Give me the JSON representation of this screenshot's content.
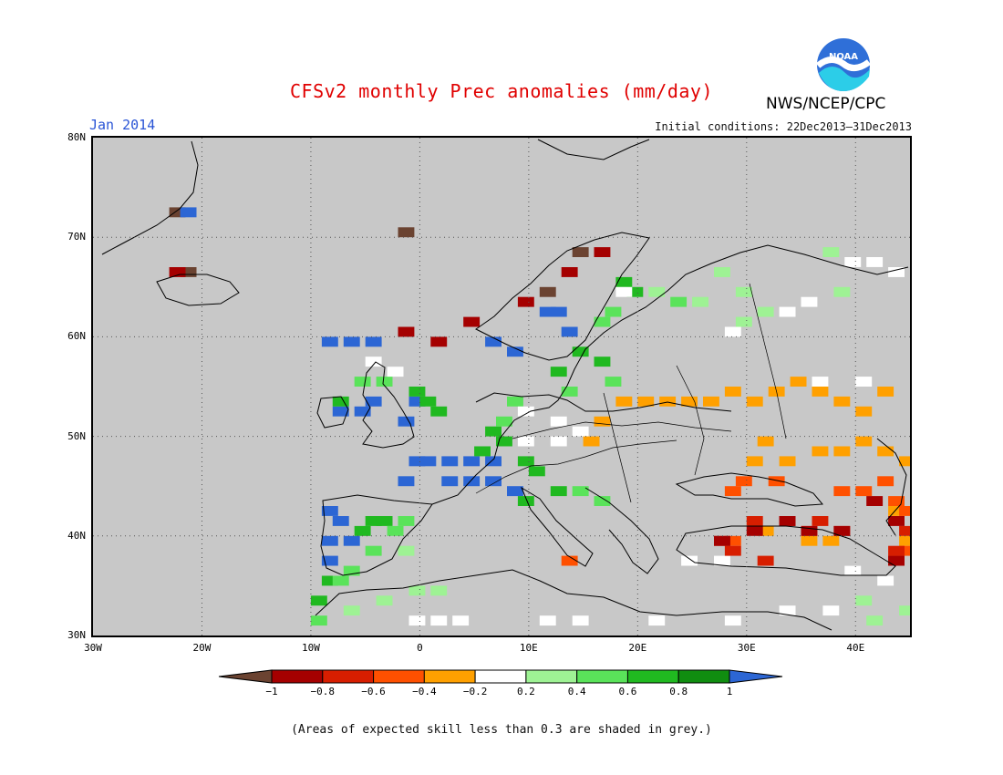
{
  "header": {
    "title": "CFSv2 monthly Prec anomalies (mm/day)",
    "month": "Jan 2014",
    "initial_conditions": "Initial conditions: 22Dec2013–31Dec2013",
    "agency": "NWS/NCEP/CPC",
    "logo_text": "NOAA"
  },
  "footer": {
    "note": "(Areas of expected skill less than 0.3 are shaded in grey.)"
  },
  "map": {
    "lat_ticks": [
      "80N",
      "70N",
      "60N",
      "50N",
      "40N",
      "30N"
    ],
    "lon_ticks": [
      "30W",
      "20W",
      "10W",
      "0",
      "10E",
      "20E",
      "30E",
      "40E"
    ],
    "extent": {
      "lon": [
        -30,
        45
      ],
      "lat": [
        30,
        80
      ]
    },
    "no_skill_color": "#c8c8c8",
    "regions": [
      {
        "class": "-1",
        "cells": [
          [
            -23,
            72
          ],
          [
            -22,
            66
          ],
          [
            -2,
            70
          ],
          [
            14,
            68
          ],
          [
            11,
            64
          ]
        ]
      },
      {
        "class": "1",
        "cells": [
          [
            -22,
            72
          ],
          [
            -9,
            59
          ],
          [
            -7,
            59
          ],
          [
            -5,
            59
          ],
          [
            6,
            59
          ],
          [
            8,
            58
          ],
          [
            -6,
            52
          ],
          [
            -2,
            51
          ],
          [
            -1,
            47
          ],
          [
            0,
            47
          ],
          [
            2,
            47
          ],
          [
            4,
            47
          ],
          [
            6,
            47
          ],
          [
            -2,
            45
          ],
          [
            2,
            45
          ],
          [
            4,
            45
          ],
          [
            6,
            45
          ],
          [
            8,
            44
          ],
          [
            -9,
            42
          ],
          [
            -8,
            41
          ],
          [
            -9,
            39
          ],
          [
            -7,
            39
          ],
          [
            -9,
            37
          ],
          [
            -5,
            53
          ],
          [
            -1,
            53
          ],
          [
            -8,
            52
          ],
          [
            11,
            62
          ],
          [
            12,
            62
          ],
          [
            13,
            60
          ]
        ]
      },
      {
        "class": "0.8",
        "cells": [
          [
            -8,
            53
          ],
          [
            -1,
            54
          ],
          [
            0,
            53
          ],
          [
            1,
            52
          ],
          [
            6,
            50
          ],
          [
            7,
            49
          ],
          [
            5,
            48
          ],
          [
            9,
            47
          ],
          [
            10,
            46
          ],
          [
            12,
            44
          ],
          [
            9,
            43
          ],
          [
            -6,
            40
          ],
          [
            -5,
            41
          ],
          [
            -4,
            41
          ],
          [
            -9,
            35
          ],
          [
            -10,
            33
          ],
          [
            14,
            58
          ],
          [
            16,
            57
          ],
          [
            12,
            56
          ],
          [
            19,
            64
          ],
          [
            18,
            65
          ]
        ]
      },
      {
        "class": "0.6",
        "cells": [
          [
            -6,
            55
          ],
          [
            -4,
            55
          ],
          [
            8,
            53
          ],
          [
            7,
            51
          ],
          [
            16,
            61
          ],
          [
            17,
            62
          ],
          [
            13,
            54
          ],
          [
            -3,
            40
          ],
          [
            -2,
            41
          ],
          [
            -5,
            38
          ],
          [
            -7,
            36
          ],
          [
            -8,
            35
          ],
          [
            -10,
            31
          ],
          [
            14,
            44
          ],
          [
            16,
            43
          ],
          [
            23,
            63
          ],
          [
            17,
            55
          ]
        ]
      },
      {
        "class": "0.4",
        "cells": [
          [
            25,
            63
          ],
          [
            27,
            66
          ],
          [
            29,
            64
          ],
          [
            31,
            62
          ],
          [
            29,
            61
          ],
          [
            21,
            64
          ],
          [
            37,
            68
          ],
          [
            38,
            64
          ],
          [
            40,
            33
          ],
          [
            44,
            32
          ],
          [
            41,
            31
          ],
          [
            -7,
            32
          ],
          [
            -4,
            33
          ],
          [
            -1,
            34
          ],
          [
            1,
            34
          ],
          [
            -2,
            38
          ]
        ]
      },
      {
        "class": "0.2",
        "cells": [
          [
            -5,
            57
          ],
          [
            -3,
            56
          ],
          [
            9,
            52
          ],
          [
            9,
            49
          ],
          [
            12,
            51
          ],
          [
            14,
            50
          ],
          [
            12,
            49
          ],
          [
            18,
            64
          ],
          [
            28,
            60
          ],
          [
            33,
            62
          ],
          [
            35,
            63
          ],
          [
            39,
            67
          ],
          [
            41,
            67
          ],
          [
            43,
            66
          ],
          [
            36,
            55
          ],
          [
            40,
            55
          ],
          [
            -1,
            31
          ],
          [
            1,
            31
          ],
          [
            3,
            31
          ],
          [
            11,
            31
          ],
          [
            14,
            31
          ],
          [
            21,
            31
          ],
          [
            28,
            31
          ],
          [
            33,
            32
          ],
          [
            37,
            32
          ],
          [
            39,
            36
          ],
          [
            42,
            35
          ],
          [
            24,
            37
          ],
          [
            27,
            37
          ]
        ]
      },
      {
        "class": "-0.2",
        "cells": [
          [
            16,
            51
          ],
          [
            15,
            49
          ],
          [
            18,
            53
          ],
          [
            20,
            53
          ],
          [
            22,
            53
          ],
          [
            24,
            53
          ],
          [
            26,
            53
          ],
          [
            28,
            54
          ],
          [
            30,
            53
          ],
          [
            32,
            54
          ],
          [
            34,
            55
          ],
          [
            36,
            54
          ],
          [
            38,
            53
          ],
          [
            40,
            52
          ],
          [
            42,
            54
          ],
          [
            31,
            49
          ],
          [
            30,
            47
          ],
          [
            33,
            47
          ],
          [
            36,
            48
          ],
          [
            38,
            48
          ],
          [
            40,
            49
          ],
          [
            42,
            48
          ],
          [
            44,
            47
          ],
          [
            31,
            40
          ],
          [
            35,
            39
          ],
          [
            37,
            39
          ],
          [
            43,
            42
          ],
          [
            44,
            39
          ]
        ]
      },
      {
        "class": "-0.4",
        "cells": [
          [
            28,
            44
          ],
          [
            29,
            45
          ],
          [
            32,
            45
          ],
          [
            38,
            44
          ],
          [
            40,
            44
          ],
          [
            42,
            45
          ],
          [
            43,
            43
          ],
          [
            44,
            42
          ],
          [
            44,
            38
          ],
          [
            28,
            39
          ],
          [
            35,
            40
          ],
          [
            13,
            37
          ],
          [
            43,
            37
          ]
        ]
      },
      {
        "class": "-0.6",
        "cells": [
          [
            30,
            41
          ],
          [
            33,
            41
          ],
          [
            36,
            41
          ],
          [
            38,
            40
          ],
          [
            27,
            39
          ],
          [
            28,
            38
          ],
          [
            44,
            40
          ],
          [
            43,
            38
          ],
          [
            31,
            37
          ]
        ]
      },
      {
        "class": "-0.8",
        "cells": [
          [
            -23,
            66
          ],
          [
            -2,
            60
          ],
          [
            1,
            59
          ],
          [
            4,
            61
          ],
          [
            9,
            63
          ],
          [
            13,
            66
          ],
          [
            16,
            68
          ],
          [
            27,
            39
          ],
          [
            30,
            40
          ],
          [
            33,
            41
          ],
          [
            35,
            40
          ],
          [
            38,
            40
          ],
          [
            41,
            43
          ],
          [
            43,
            41
          ],
          [
            43,
            37
          ]
        ]
      }
    ]
  },
  "colorbar": {
    "labels": [
      "−1",
      "−0.8",
      "−0.6",
      "−0.4",
      "−0.2",
      "0.2",
      "0.4",
      "0.6",
      "0.8",
      "1"
    ],
    "colors": {
      "below_-1": "#6b4331",
      "-1_-0.8": "#a50000",
      "-0.8_-0.6": "#d71e00",
      "-0.6_-0.4": "#ff5000",
      "-0.4_-0.2": "#ffa000",
      "-0.2_0.2": "#ffffff",
      "0.2_0.4": "#9ef294",
      "0.4_0.6": "#5ae35a",
      "0.6_0.8": "#20b920",
      "0.8_1": "#108d10",
      "above_1": "#2c66d4"
    }
  }
}
